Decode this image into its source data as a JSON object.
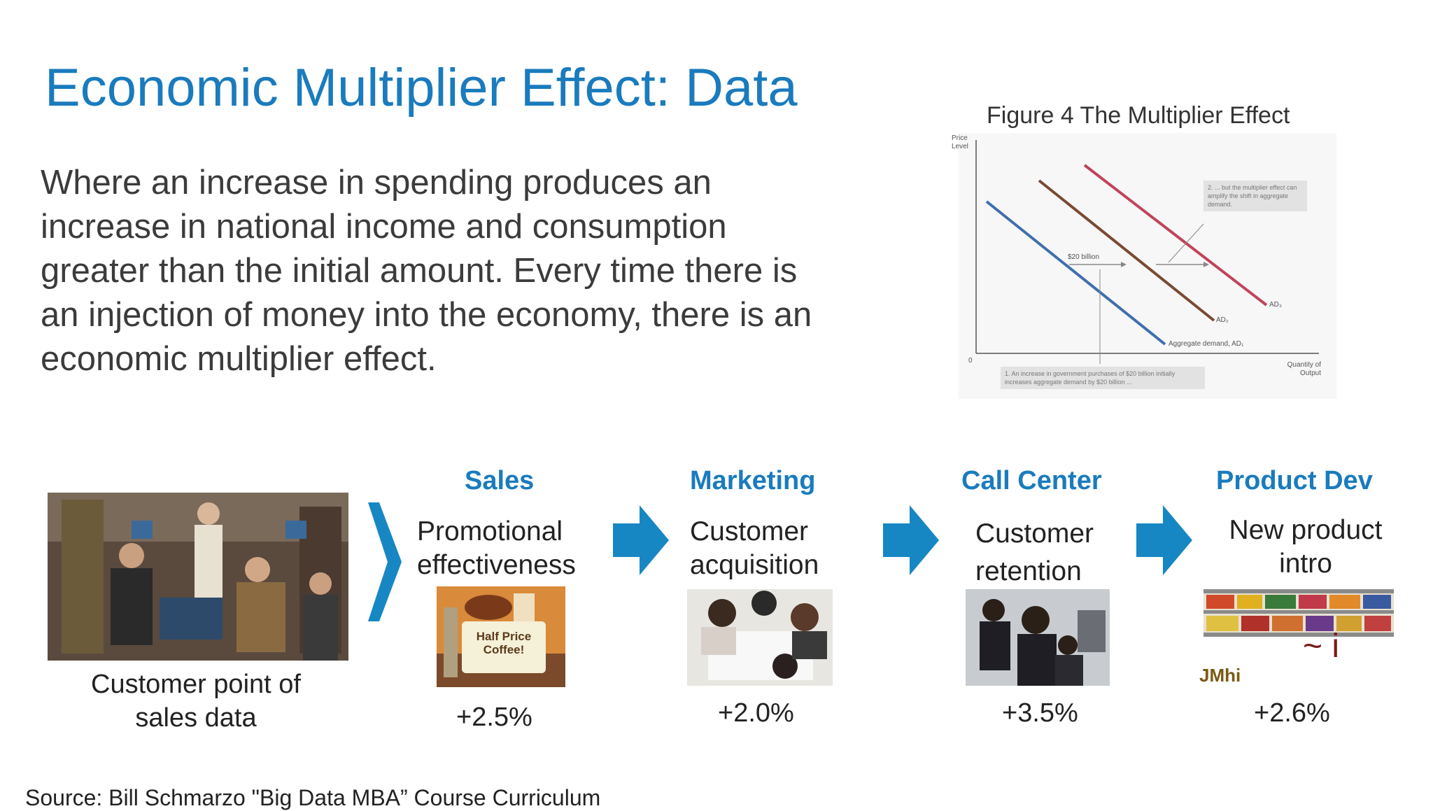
{
  "slide": {
    "title": "Economic Multiplier Effect: Data",
    "description": "Where an increase in spending produces an increase in national income and consumption greater than the initial amount. Every time there is an injection of money into the economy, there is an economic multiplier effect.",
    "source": "Source: Bill Schmarzo \"Big Data MBA” Course Curriculum"
  },
  "figure": {
    "title": "Figure 4 The Multiplier Effect",
    "y_axis_label": "Price Level",
    "x_axis_label": "Quantity of Output",
    "origin_label": "0",
    "curve_labels": [
      "Aggregate demand, AD₁",
      "AD₂",
      "AD₃"
    ],
    "shift_label": "$20 billion",
    "note_top": "2. ... but the multiplier effect can amplify the shift in aggregate demand.",
    "note_bottom": "1. An increase in government purchases of $20 billion initially increases aggregate demand by $20 billion ...",
    "colors": {
      "ad1": "#3f6fae",
      "ad2": "#7a4a32",
      "ad3": "#c0455a"
    }
  },
  "flow": {
    "start_caption": "Customer point of sales data",
    "arrow_color": "#1787c4",
    "stages": [
      {
        "header": "Sales",
        "description_lines": [
          "Promotional",
          "effectiveness"
        ],
        "value": "+2.5%"
      },
      {
        "header": "Marketing",
        "description_lines": [
          "Customer",
          "acquisition"
        ],
        "value": "+2.0%"
      },
      {
        "header": "Call Center",
        "description_lines": [
          "Customer",
          "retention"
        ],
        "value": "+3.5%"
      },
      {
        "header": "Product Dev",
        "description_lines": [
          "New product",
          "intro"
        ],
        "value": "+2.6%"
      }
    ],
    "sign_text": "Half Price Coffee!",
    "stray_marks": {
      "squiggle": "~ i",
      "tag": "JMhi"
    }
  }
}
